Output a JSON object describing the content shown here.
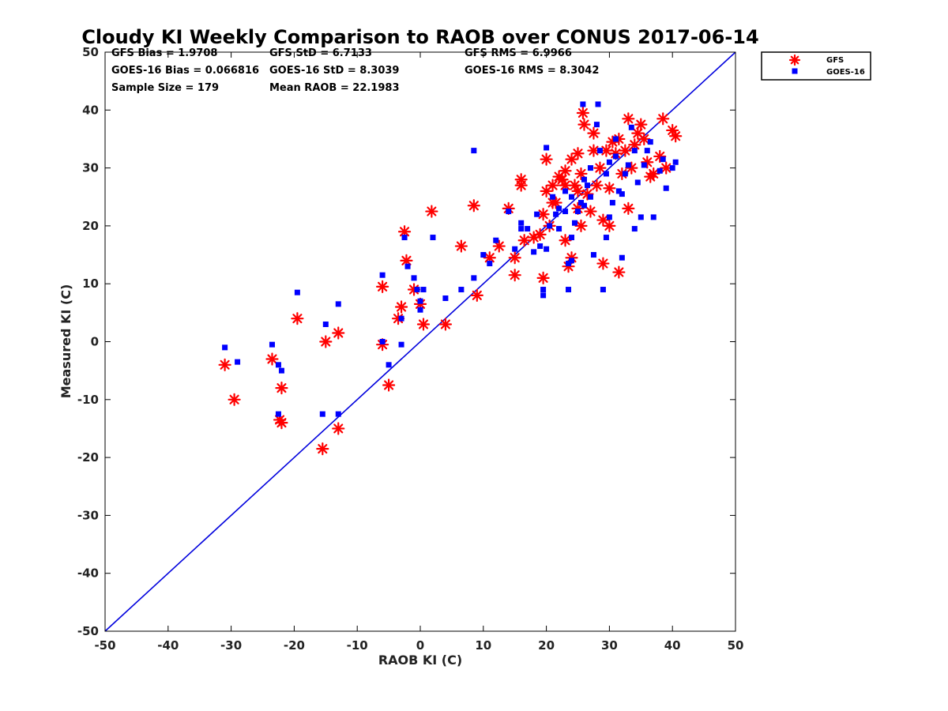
{
  "chart_data": {
    "type": "scatter",
    "title": "Cloudy KI Weekly Comparison to RAOB over CONUS 2017-06-14",
    "xlabel": "RAOB KI (C)",
    "ylabel": "Measured KI (C)",
    "xlim": [
      -50,
      50
    ],
    "ylim": [
      -50,
      50
    ],
    "xticks": [
      "-50",
      "-40",
      "-30",
      "-20",
      "-10",
      "0",
      "10",
      "20",
      "30",
      "40",
      "50"
    ],
    "yticks": [
      "50",
      "40",
      "30",
      "20",
      "10",
      "0",
      "-10",
      "-20",
      "-30",
      "-40",
      "-50"
    ],
    "grid": false,
    "legend_position": "outside top-right",
    "reference_line": {
      "name": "1:1 line",
      "from": [
        -50,
        -50
      ],
      "to": [
        50,
        50
      ],
      "color": "#0000dd"
    },
    "stats": [
      "GFS Bias = 1.9708",
      "GFS StD = 6.7133",
      "GFS RMS = 6.9966",
      "GOES-16 Bias = 0.066816",
      "GOES-16 StD = 8.3039",
      "GOES-16 RMS = 8.3042",
      "Sample Size = 179",
      "Mean RAOB = 22.1983"
    ],
    "series": [
      {
        "name": "GFS",
        "marker": "asterisk",
        "color": "#ff0000",
        "points": [
          [
            -31,
            -4
          ],
          [
            -29.5,
            -10
          ],
          [
            -23.5,
            -3
          ],
          [
            -22,
            -8
          ],
          [
            -22.3,
            -13.5
          ],
          [
            -22,
            -14
          ],
          [
            -19.5,
            4
          ],
          [
            -15,
            0
          ],
          [
            -13,
            1.5
          ],
          [
            -13,
            -15
          ],
          [
            -15.5,
            -18.5
          ],
          [
            -6,
            9.5
          ],
          [
            -6,
            -0.5
          ],
          [
            -5,
            -7.5
          ],
          [
            -3.5,
            4
          ],
          [
            -3,
            6
          ],
          [
            -2.5,
            19
          ],
          [
            -2.2,
            14
          ],
          [
            -1,
            9
          ],
          [
            0,
            6.5
          ],
          [
            0.5,
            3
          ],
          [
            1.8,
            22.5
          ],
          [
            4,
            3
          ],
          [
            6.5,
            16.5
          ],
          [
            8.5,
            23.5
          ],
          [
            9,
            8
          ],
          [
            11,
            14.5
          ],
          [
            12.5,
            16.5
          ],
          [
            14,
            23
          ],
          [
            15,
            11.5
          ],
          [
            15,
            14.5
          ],
          [
            16,
            28
          ],
          [
            16,
            27
          ],
          [
            16.5,
            17.5
          ],
          [
            18,
            18
          ],
          [
            19,
            18.5
          ],
          [
            19.5,
            11
          ],
          [
            19.5,
            22
          ],
          [
            20,
            31.5
          ],
          [
            20,
            26
          ],
          [
            20.5,
            20
          ],
          [
            21,
            27
          ],
          [
            21.5,
            24
          ],
          [
            22,
            28.5
          ],
          [
            22.5,
            28
          ],
          [
            23,
            29.5
          ],
          [
            23,
            17.5
          ],
          [
            23.5,
            13
          ],
          [
            24,
            14.5
          ],
          [
            24,
            31.5
          ],
          [
            24.5,
            27
          ],
          [
            25,
            23
          ],
          [
            25,
            32.5
          ],
          [
            25.5,
            29
          ],
          [
            25.5,
            20
          ],
          [
            25.8,
            39.5
          ],
          [
            26,
            37.5
          ],
          [
            26.5,
            25.5
          ],
          [
            27,
            22.5
          ],
          [
            27.5,
            33
          ],
          [
            27.5,
            36
          ],
          [
            28,
            27
          ],
          [
            28.5,
            30
          ],
          [
            29,
            13.5
          ],
          [
            29,
            21
          ],
          [
            29.5,
            33
          ],
          [
            30,
            20
          ],
          [
            30,
            26.5
          ],
          [
            30.5,
            34.5
          ],
          [
            31,
            32.5
          ],
          [
            31.5,
            35
          ],
          [
            31.5,
            12
          ],
          [
            32,
            29
          ],
          [
            32.5,
            33
          ],
          [
            33,
            38.5
          ],
          [
            33,
            23
          ],
          [
            33.5,
            30
          ],
          [
            34,
            34
          ],
          [
            34.5,
            36
          ],
          [
            35,
            37.5
          ],
          [
            35.5,
            35
          ],
          [
            36,
            31
          ],
          [
            36.5,
            28.5
          ],
          [
            37,
            29
          ],
          [
            38,
            32
          ],
          [
            38.5,
            38.5
          ],
          [
            39,
            30
          ],
          [
            40,
            36.5
          ],
          [
            40.5,
            35.5
          ],
          [
            23,
            27
          ],
          [
            25,
            26
          ],
          [
            21,
            24
          ]
        ]
      },
      {
        "name": "GOES-16",
        "marker": "square",
        "color": "#0000ff",
        "points": [
          [
            -31,
            -1
          ],
          [
            -29,
            -3.5
          ],
          [
            -23.5,
            -0.5
          ],
          [
            -22.5,
            -4
          ],
          [
            -22,
            -5
          ],
          [
            -22.5,
            -12.5
          ],
          [
            -19.5,
            8.5
          ],
          [
            -15,
            3
          ],
          [
            -15.5,
            -12.5
          ],
          [
            -13,
            6.5
          ],
          [
            -13,
            -12.5
          ],
          [
            -6,
            11.5
          ],
          [
            -6,
            0
          ],
          [
            -5,
            -4
          ],
          [
            -3,
            -0.5
          ],
          [
            -3,
            4
          ],
          [
            -2.5,
            18
          ],
          [
            -2,
            13
          ],
          [
            -1,
            11
          ],
          [
            -0.5,
            9
          ],
          [
            0,
            7
          ],
          [
            0,
            5.5
          ],
          [
            0.5,
            9
          ],
          [
            2,
            18
          ],
          [
            4,
            7.5
          ],
          [
            6.5,
            9
          ],
          [
            8.5,
            33
          ],
          [
            8.5,
            11
          ],
          [
            10,
            15
          ],
          [
            11,
            13.5
          ],
          [
            12,
            17.5
          ],
          [
            14,
            22.5
          ],
          [
            15,
            16
          ],
          [
            16,
            20.5
          ],
          [
            16,
            19.5
          ],
          [
            17,
            19.5
          ],
          [
            18,
            15.5
          ],
          [
            18.5,
            22
          ],
          [
            19,
            16.5
          ],
          [
            19.5,
            8
          ],
          [
            19.5,
            9
          ],
          [
            20,
            33.5
          ],
          [
            20,
            16
          ],
          [
            20.5,
            20
          ],
          [
            21,
            25
          ],
          [
            21.5,
            22
          ],
          [
            22,
            23
          ],
          [
            22,
            19.5
          ],
          [
            23,
            22.5
          ],
          [
            23,
            26
          ],
          [
            23.5,
            9
          ],
          [
            23.5,
            13.5
          ],
          [
            24,
            14
          ],
          [
            24,
            18
          ],
          [
            24.5,
            20.5
          ],
          [
            25,
            22.5
          ],
          [
            25.5,
            24
          ],
          [
            25.8,
            41
          ],
          [
            26,
            23.5
          ],
          [
            26.5,
            27
          ],
          [
            27,
            25
          ],
          [
            27.5,
            15
          ],
          [
            28,
            37.5
          ],
          [
            28.2,
            41
          ],
          [
            28.5,
            33
          ],
          [
            29,
            9
          ],
          [
            29.5,
            18
          ],
          [
            29.5,
            29
          ],
          [
            30,
            21.5
          ],
          [
            30.5,
            24
          ],
          [
            31,
            32
          ],
          [
            31.5,
            26
          ],
          [
            32,
            14.5
          ],
          [
            32,
            25.5
          ],
          [
            32.5,
            29
          ],
          [
            33,
            30.5
          ],
          [
            33.5,
            37
          ],
          [
            34,
            19.5
          ],
          [
            34,
            33
          ],
          [
            34.5,
            27.5
          ],
          [
            35,
            21.5
          ],
          [
            35.5,
            30.5
          ],
          [
            36,
            33
          ],
          [
            36.5,
            34.5
          ],
          [
            37,
            21.5
          ],
          [
            38,
            29.5
          ],
          [
            38.5,
            31.5
          ],
          [
            39,
            26.5
          ],
          [
            40,
            30
          ],
          [
            40.5,
            31
          ],
          [
            24,
            25
          ],
          [
            26,
            28
          ],
          [
            27,
            30
          ],
          [
            30,
            31
          ],
          [
            31,
            35
          ]
        ]
      }
    ]
  }
}
